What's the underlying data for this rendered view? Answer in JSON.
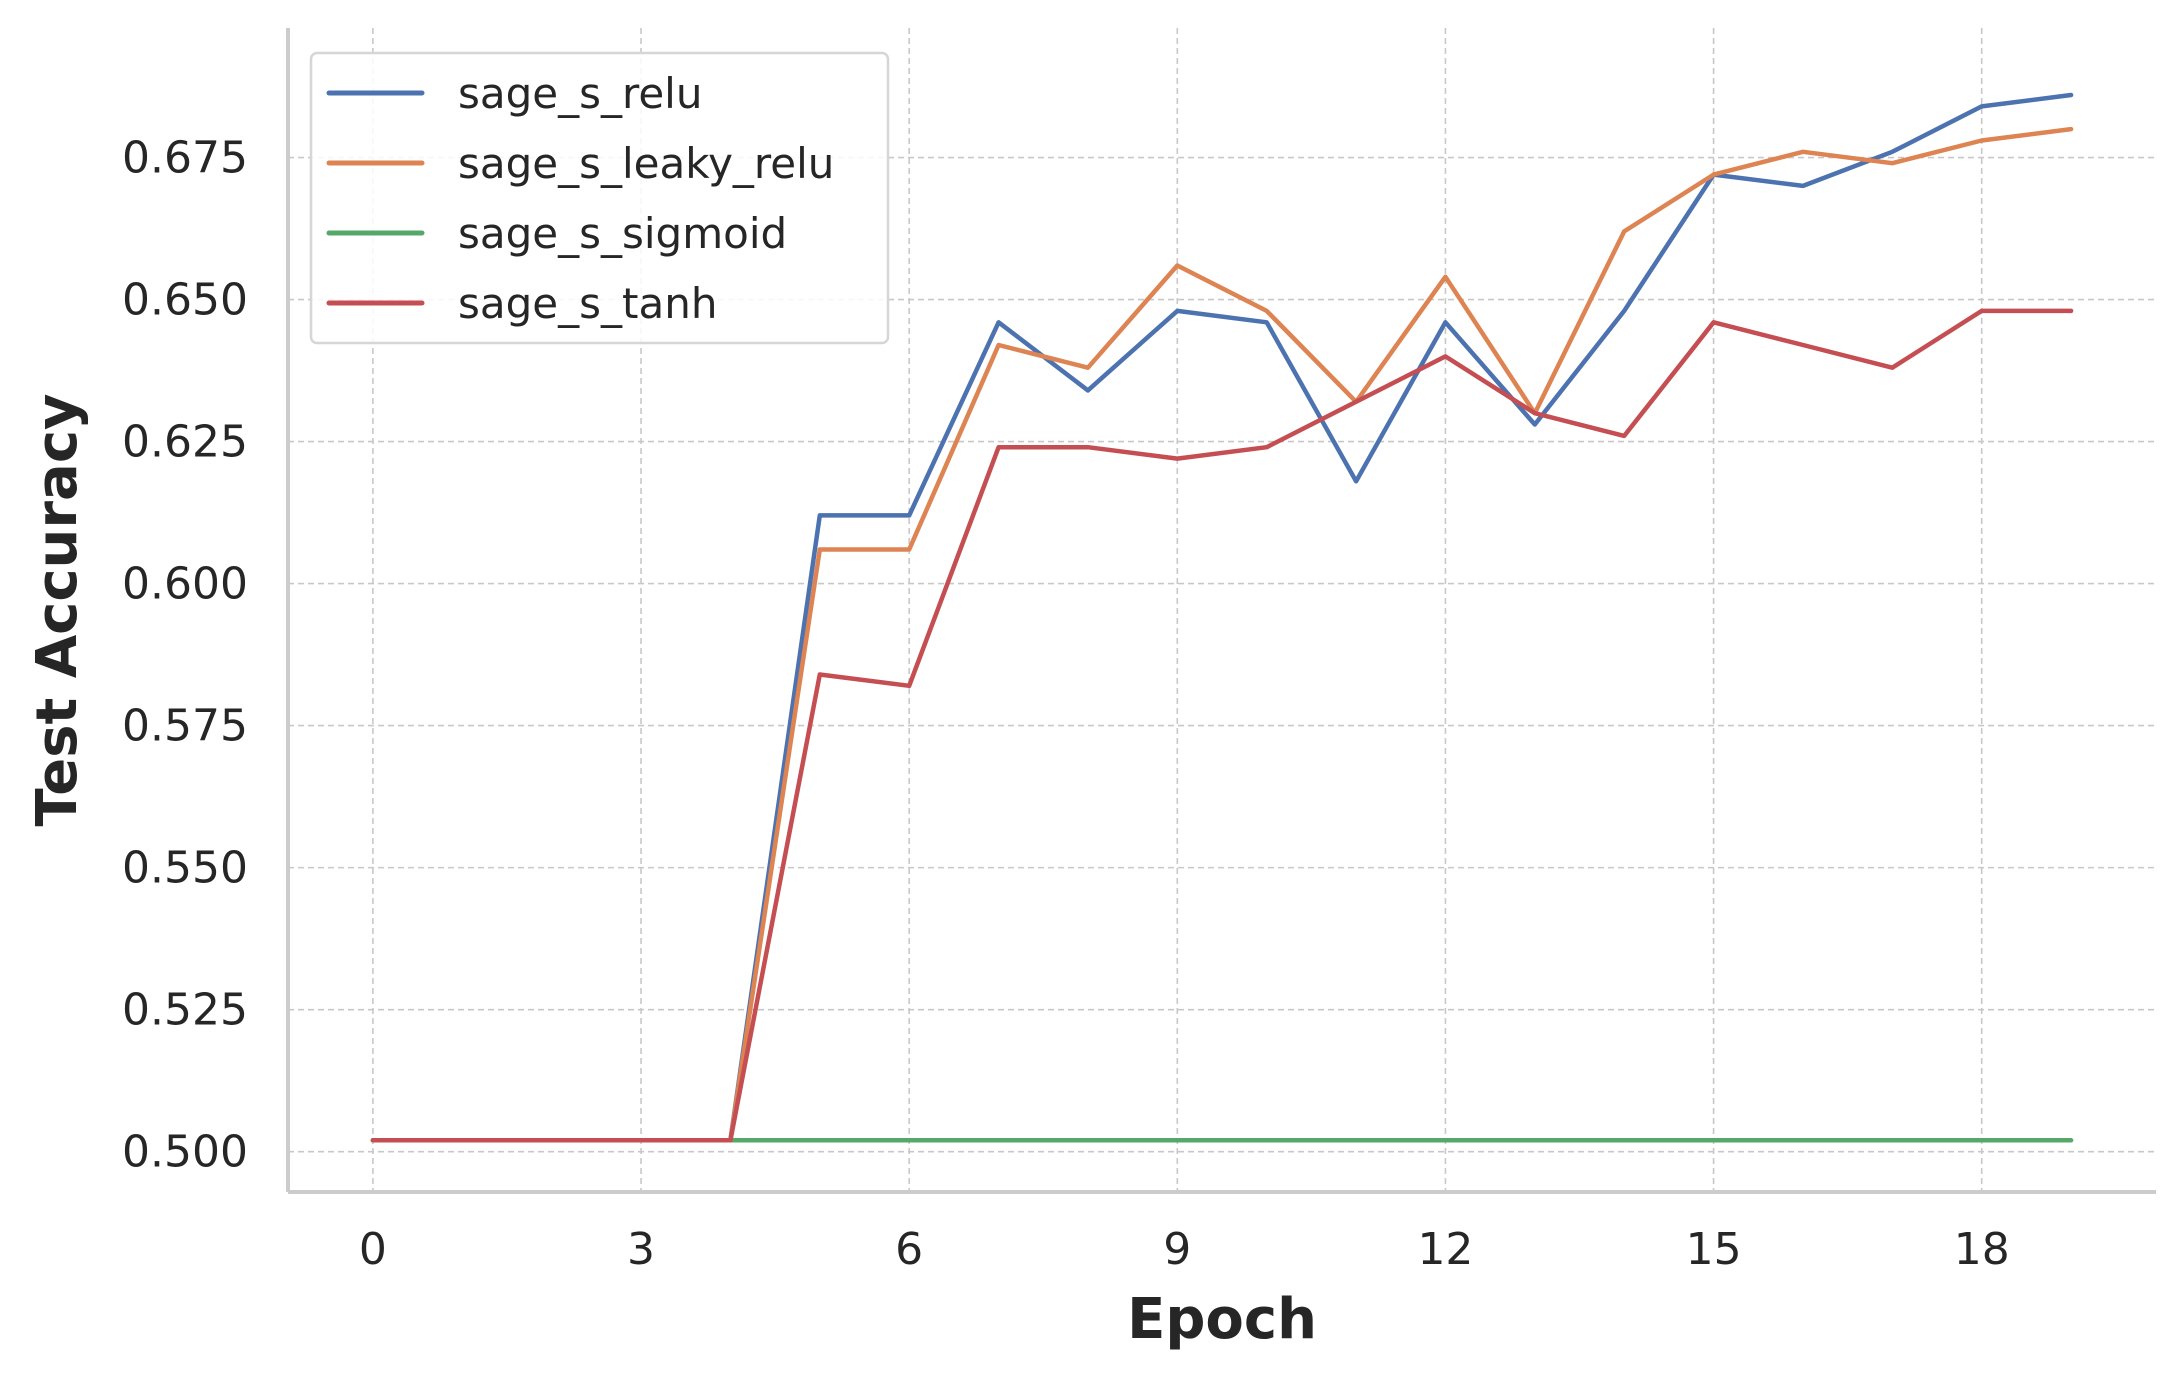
{
  "chart_data": {
    "type": "line",
    "title": "",
    "xlabel": "Epoch",
    "ylabel": "Test Accuracy",
    "x": [
      0,
      1,
      2,
      3,
      4,
      5,
      6,
      7,
      8,
      9,
      10,
      11,
      12,
      13,
      14,
      15,
      16,
      17,
      18,
      19
    ],
    "xlim": [
      -0.95,
      19.95
    ],
    "ylim": [
      0.4929,
      0.6978
    ],
    "x_ticks": [
      0,
      3,
      6,
      9,
      12,
      15,
      18
    ],
    "x_tick_labels": [
      "0",
      "3",
      "6",
      "9",
      "12",
      "15",
      "18"
    ],
    "y_ticks": [
      0.5,
      0.525,
      0.55,
      0.575,
      0.6,
      0.625,
      0.65,
      0.675
    ],
    "y_tick_labels": [
      "0.500",
      "0.525",
      "0.550",
      "0.575",
      "0.600",
      "0.625",
      "0.650",
      "0.675"
    ],
    "grid": true,
    "legend_position": "top-left",
    "series": [
      {
        "name": "sage_s_relu",
        "color": "#4c72b0",
        "values": [
          0.502,
          0.502,
          0.502,
          0.502,
          0.502,
          0.612,
          0.612,
          0.646,
          0.634,
          0.648,
          0.646,
          0.618,
          0.646,
          0.628,
          0.648,
          0.672,
          0.67,
          0.676,
          0.684,
          0.686
        ]
      },
      {
        "name": "sage_s_leaky_relu",
        "color": "#dd8452",
        "values": [
          0.502,
          0.502,
          0.502,
          0.502,
          0.502,
          0.606,
          0.606,
          0.642,
          0.638,
          0.656,
          0.648,
          0.632,
          0.654,
          0.63,
          0.662,
          0.672,
          0.676,
          0.674,
          0.678,
          0.68
        ]
      },
      {
        "name": "sage_s_sigmoid",
        "color": "#55a868",
        "values": [
          0.502,
          0.502,
          0.502,
          0.502,
          0.502,
          0.502,
          0.502,
          0.502,
          0.502,
          0.502,
          0.502,
          0.502,
          0.502,
          0.502,
          0.502,
          0.502,
          0.502,
          0.502,
          0.502,
          0.502
        ]
      },
      {
        "name": "sage_s_tanh",
        "color": "#c44e52",
        "values": [
          0.502,
          0.502,
          0.502,
          0.502,
          0.502,
          0.584,
          0.582,
          0.624,
          0.624,
          0.622,
          0.624,
          0.632,
          0.64,
          0.63,
          0.626,
          0.646,
          0.642,
          0.638,
          0.648,
          0.648
        ]
      }
    ]
  }
}
